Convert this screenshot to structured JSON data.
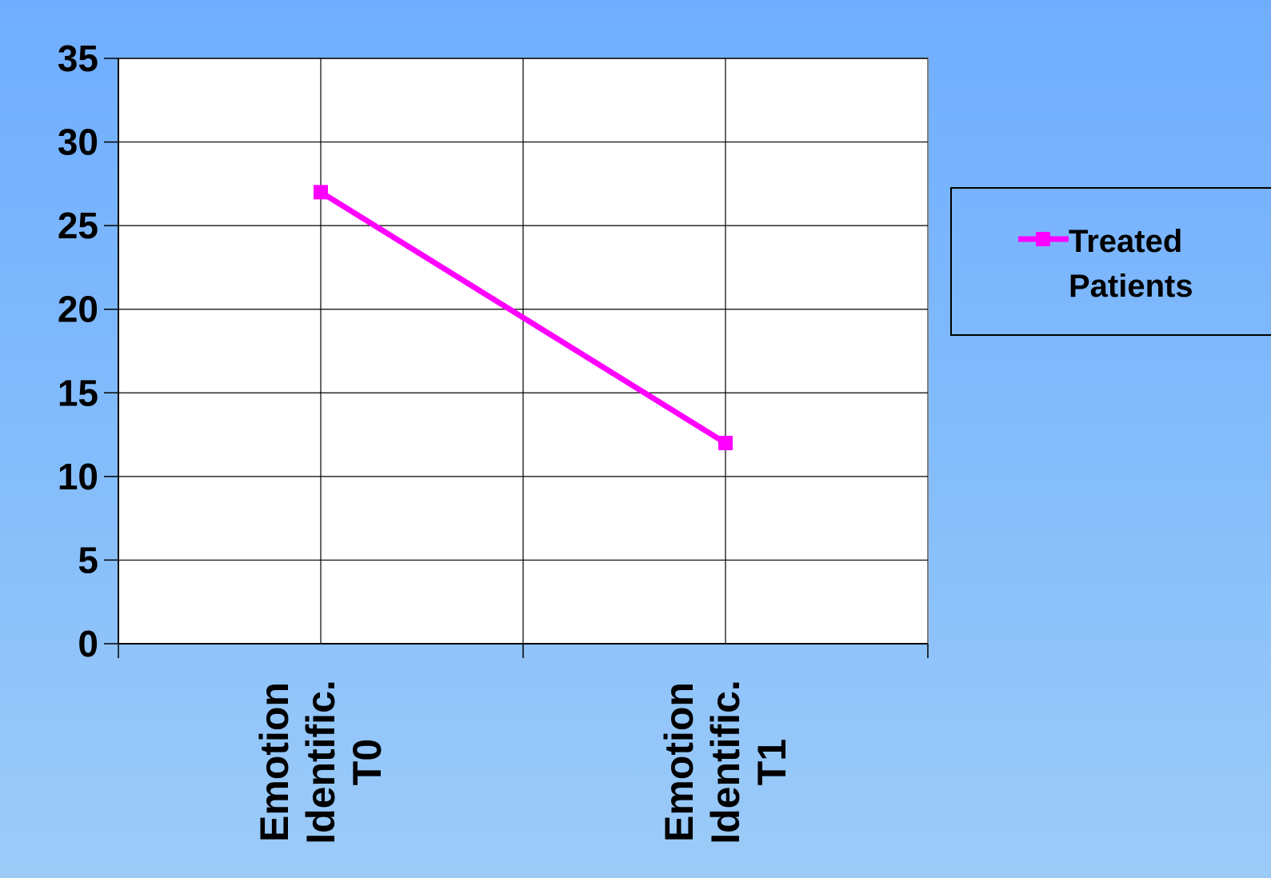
{
  "chart_data": {
    "type": "line",
    "categories": [
      [
        "Emotion",
        "Identific.",
        "T0"
      ],
      [
        "Emotion",
        "Identific.",
        "T1"
      ]
    ],
    "series": [
      {
        "name": "Treated Patients",
        "name_lines": [
          "Treated",
          "Patients"
        ],
        "values": [
          27,
          12
        ],
        "color": "#ff00ff"
      }
    ],
    "ylim": [
      0,
      35
    ],
    "yticks": [
      "0",
      "5",
      "10",
      "15",
      "20",
      "25",
      "30",
      "35"
    ],
    "grid": true,
    "legend_position": "right",
    "colors": {
      "plot_background": "#ffffff",
      "grid": "#000000",
      "series": "#ff00ff"
    }
  }
}
